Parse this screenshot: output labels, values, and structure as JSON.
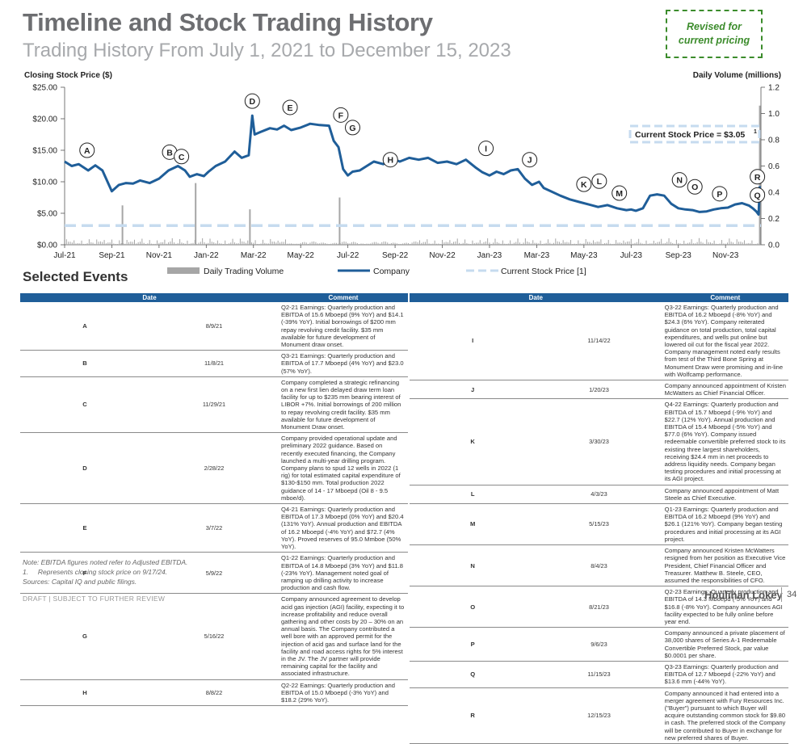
{
  "header": {
    "title": "Timeline and Stock Trading History",
    "subtitle": "Trading History From July 1, 2021 to December 15, 2023",
    "revised_note": "Revised for\ncurrent pricing"
  },
  "chart_data": {
    "type": "line",
    "left_axis_title": "Closing Stock Price ($)",
    "right_axis_title": "Daily Volume (millions)",
    "y_ticks": [
      "$0.00",
      "$5.00",
      "$10.00",
      "$15.00",
      "$20.00",
      "$25.00"
    ],
    "ylim": [
      0,
      25
    ],
    "y2_ticks": [
      "0.0",
      "0.2",
      "0.4",
      "0.6",
      "0.8",
      "1.0",
      "1.2"
    ],
    "y2lim": [
      0,
      1.2
    ],
    "x_ticks": [
      "Jul-21",
      "Sep-21",
      "Nov-21",
      "Jan-22",
      "Mar-22",
      "May-22",
      "Jul-22",
      "Sep-22",
      "Nov-22",
      "Jan-23",
      "Mar-23",
      "May-23",
      "Jul-23",
      "Sep-23",
      "Nov-23"
    ],
    "x_tick_months": [
      0,
      2,
      4,
      6,
      8,
      10,
      12,
      14,
      16,
      18,
      20,
      22,
      24,
      26,
      28
    ],
    "xlim_months": [
      0,
      29.5
    ],
    "price_series": {
      "name": "Company",
      "months": [
        0,
        0.3,
        0.6,
        1,
        1.3,
        1.6,
        2,
        2.3,
        2.6,
        2.9,
        3.2,
        3.6,
        4,
        4.4,
        4.8,
        5.1,
        5.3,
        5.6,
        5.9,
        6.1,
        6.4,
        6.8,
        7.2,
        7.5,
        7.8,
        7.95,
        8.05,
        8.3,
        8.7,
        9,
        9.3,
        9.6,
        10,
        10.4,
        10.8,
        11.2,
        11.4,
        11.6,
        11.8,
        12,
        12.2,
        12.5,
        12.8,
        13.1,
        13.5,
        13.8,
        14.2,
        14.6,
        15,
        15.4,
        15.8,
        16.2,
        16.6,
        17,
        17.4,
        17.7,
        18,
        18.3,
        18.6,
        18.9,
        19.2,
        19.5,
        19.8,
        20.1,
        20.3,
        20.6,
        21,
        21.4,
        21.8,
        22.2,
        22.6,
        23,
        23.4,
        23.8,
        24,
        24.2,
        24.5,
        24.8,
        25.1,
        25.4,
        25.7,
        26,
        26.3,
        26.6,
        26.9,
        27.2,
        27.5,
        27.8,
        28.1,
        28.4,
        28.7,
        29,
        29.15,
        29.3,
        29.4,
        29.45
      ],
      "values": [
        13.2,
        12.5,
        12.8,
        11.8,
        12.6,
        11.8,
        8.5,
        9.5,
        9.8,
        9.7,
        10.2,
        9.8,
        10.5,
        11.8,
        12.5,
        11.8,
        10.8,
        11.2,
        10.9,
        11.6,
        12.5,
        13.2,
        14.8,
        13.8,
        14.2,
        20.5,
        17.5,
        17.9,
        18.5,
        18.3,
        18.9,
        18.2,
        18.6,
        19.2,
        19.0,
        18.9,
        16.5,
        15.5,
        12.0,
        11.0,
        11.6,
        11.8,
        12.5,
        13.2,
        12.8,
        13.8,
        13.2,
        13.8,
        13.5,
        13.8,
        13.0,
        13.2,
        12.8,
        13.5,
        12.3,
        11.5,
        11.0,
        11.6,
        11.2,
        11.8,
        12.0,
        10.5,
        9.5,
        10.0,
        9.0,
        8.5,
        7.8,
        7.2,
        6.8,
        6.4,
        6.0,
        6.3,
        5.8,
        5.5,
        5.6,
        5.4,
        5.8,
        7.8,
        8.0,
        7.8,
        6.5,
        5.8,
        5.6,
        5.5,
        5.2,
        5.3,
        5.6,
        5.8,
        5.9,
        6.4,
        6.6,
        6.2,
        5.8,
        5.3,
        4.8,
        9.3
      ]
    },
    "volume_spikes": [
      {
        "month": 2.45,
        "volume": 0.3
      },
      {
        "month": 5.55,
        "volume": 0.47
      },
      {
        "month": 7.85,
        "volume": 0.27
      },
      {
        "month": 11.65,
        "volume": 0.36
      },
      {
        "month": 29.45,
        "volume": 1.06
      }
    ],
    "current_price": {
      "value": 3.05,
      "label": "Current Stock Price = $3.05",
      "footnote": "1"
    },
    "legend": [
      "Daily Trading Volume",
      "Company",
      "Current Stock Price [1]"
    ],
    "event_markers": [
      {
        "key": "A",
        "month": 0.95,
        "label_price": 15.0
      },
      {
        "key": "B",
        "month": 4.45,
        "label_price": 14.7
      },
      {
        "key": "C",
        "month": 4.95,
        "label_price": 14.0
      },
      {
        "key": "D",
        "month": 7.95,
        "label_price": 22.8
      },
      {
        "key": "E",
        "month": 9.55,
        "label_price": 21.8
      },
      {
        "key": "F",
        "month": 11.7,
        "label_price": 20.6
      },
      {
        "key": "G",
        "month": 12.2,
        "label_price": 18.6
      },
      {
        "key": "H",
        "month": 13.8,
        "label_price": 13.5
      },
      {
        "key": "I",
        "month": 17.85,
        "label_price": 15.3
      },
      {
        "key": "J",
        "month": 19.7,
        "label_price": 13.5
      },
      {
        "key": "K",
        "month": 22.0,
        "label_price": 9.6
      },
      {
        "key": "L",
        "month": 22.65,
        "label_price": 10.1
      },
      {
        "key": "M",
        "month": 23.5,
        "label_price": 8.2
      },
      {
        "key": "N",
        "month": 26.05,
        "label_price": 10.3
      },
      {
        "key": "O",
        "month": 26.7,
        "label_price": 9.2
      },
      {
        "key": "P",
        "month": 27.75,
        "label_price": 8.1
      },
      {
        "key": "Q",
        "month": 29.35,
        "label_price": 7.9
      },
      {
        "key": "R",
        "month": 29.35,
        "label_price": 10.8
      }
    ]
  },
  "events": {
    "section_title": "Selected Events",
    "header_date": "Date",
    "header_comment": "Comment",
    "left": [
      {
        "key": "A",
        "date": "8/9/21",
        "comment": "Q2-21 Earnings: Quarterly production and EBITDA of 15.6 Mboepd (9% YoY) and $14.1 (-39% YoY). Initial borrowings of $200 mm repay revolving credit facility. $35 mm available for future development of Monument draw onset."
      },
      {
        "key": "B",
        "date": "11/8/21",
        "comment": "Q3-21 Earnings: Quarterly production and EBITDA of 17.7 Mboepd (4% YoY) and $23.0 (57% YoY)."
      },
      {
        "key": "C",
        "date": "11/29/21",
        "comment": "Company completed a strategic refinancing on a new first lien delayed draw term loan facility for up to $235 mm bearing interest of LIBOR +7%. Initial borrowings of 200 million to repay revolving credit facility. $35 mm available for future development of Monument Draw onset."
      },
      {
        "key": "D",
        "date": "2/28/22",
        "comment": "Company provided operational update and preliminary 2022 guidance. Based on recently executed financing, the Company launched a multi-year drilling program. Company plans to spud 12 wells in 2022 (1 rig) for total estimated capital expenditure of $130-$150 mm. Total production 2022 guidance of 14 - 17 Mboepd (Oil 8 - 9.5 mboe/d)."
      },
      {
        "key": "E",
        "date": "3/7/22",
        "comment": "Q4-21 Earnings: Quarterly production and EBITDA of 17.3 Mboepd (0% YoY) and $20.4 (131% YoY). Annual production and EBITDA of 16.2 Mboepd (-4% YoY) and $72.7 (4% YoY). Proved reserves of 95.0 Mmboe (50% YoY)."
      },
      {
        "key": "F",
        "date": "5/9/22",
        "comment": "Q1-22 Earnings: Quarterly production and EBITDA of 14.8 Mboepd (3% YoY) and $11.8 (-23% YoY). Management noted goal of ramping up drilling activity to increase production and cash flow."
      },
      {
        "key": "G",
        "date": "5/16/22",
        "comment": "Company announced agreement to develop acid gas injection (AGI) facility, expecting it to increase profitability and reduce overall gathering and other costs by 20 – 30% on an annual basis. The Company contributed a well bore with an approved permit for the injection of acid gas and surface land for the facility and road access rights for 5% interest in the JV. The JV partner will provide remaining capital for the facility and associated infrastructure."
      },
      {
        "key": "H",
        "date": "8/8/22",
        "comment": "Q2-22 Earnings: Quarterly production and EBITDA of 15.0 Mboepd (-3% YoY) and $18.2 (29% YoY)."
      }
    ],
    "right": [
      {
        "key": "I",
        "date": "11/14/22",
        "comment": "Q3-22 Earnings: Quarterly production and EBITDA of 16.2 Mboepd (-8% YoY) and $24.3 (6% YoY). Company reiterated guidance on total production, total capital expenditures, and wells put online but lowered oil cut for the fiscal year 2022. Company management noted early results from test of the Third Bone Spring at Monument Draw were promising and in-line with Wolfcamp performance."
      },
      {
        "key": "J",
        "date": "1/20/23",
        "comment": "Company announced appointment of Kristen McWatters as Chief Financial Officer."
      },
      {
        "key": "K",
        "date": "3/30/23",
        "comment": "Q4-22 Earnings: Quarterly production and EBITDA of 15.7 Mboepd (-9% YoY) and $22.7 (12% YoY). Annual production and EBITDA of 15.4 Mboepd (-5% YoY) and $77.0 (6% YoY). Company issued redeemable convertible preferred stock to its existing three largest shareholders, receiving $24.4 mm in net proceeds to address liquidity needs. Company began testing procedures and initial processing at its AGI project."
      },
      {
        "key": "L",
        "date": "4/3/23",
        "comment": "Company announced appointment of Matt Steele as Chief Executive."
      },
      {
        "key": "M",
        "date": "5/15/23",
        "comment": "Q1-23 Earnings: Quarterly production and EBITDA of 16.2 Mboepd (9% YoY) and $26.1 (121% YoY). Company began testing procedures and initial processing at its AGI project."
      },
      {
        "key": "N",
        "date": "8/4/23",
        "comment": "Company announced Kristen McWatters resigned from her position as Executive Vice President, Chief Financial Officer and Treasurer. Matthew B. Steele, CEO, assumed the responsibilities of CFO."
      },
      {
        "key": "O",
        "date": "8/21/23",
        "comment": "Q2-23 Earnings: Quarterly production and EBITDA of 14.3 Mboepd (-5% YoY) and $16.8 (-8% YoY). Company announces AGI facility expected to be fully online before year end."
      },
      {
        "key": "P",
        "date": "9/6/23",
        "comment": "Company announced a private placement of 38,000 shares of Series A-1 Redeemable Convertible Preferred Stock, par value $0.0001 per share."
      },
      {
        "key": "Q",
        "date": "11/15/23",
        "comment": "Q3-23 Earnings: Quarterly production and EBITDA of 12.7 Mboepd (-22% YoY) and $13.6 mm (-44% YoY)."
      },
      {
        "key": "R",
        "date": "12/15/23",
        "comment": "Company announced it had entered into a merger agreement with Fury Resources Inc. (\"Buyer\") pursuant to which Buyer will acquire outstanding common stock for $9.80 in cash. The preferred stock of the Company will be contributed to Buyer in exchange for new preferred shares of Buyer."
      }
    ]
  },
  "notes": {
    "line1": "Note: EBITDA figures noted refer to Adjusted EBITDA.",
    "line2": "1.     Represents closing stock price on 9/17/24.",
    "line3": "Sources: Capital IQ and public filings."
  },
  "footer": {
    "draft": "DRAFT | SUBJECT TO FURTHER REVIEW",
    "brand": "Houlihan Lokey",
    "page": "34"
  },
  "colors": {
    "price_line": "#1f5e99",
    "current_price_line": "#c6dbef",
    "volume_bars": "#a6a6a6",
    "table_header": "#1f5e99",
    "revised_border": "#3c8c2c"
  }
}
